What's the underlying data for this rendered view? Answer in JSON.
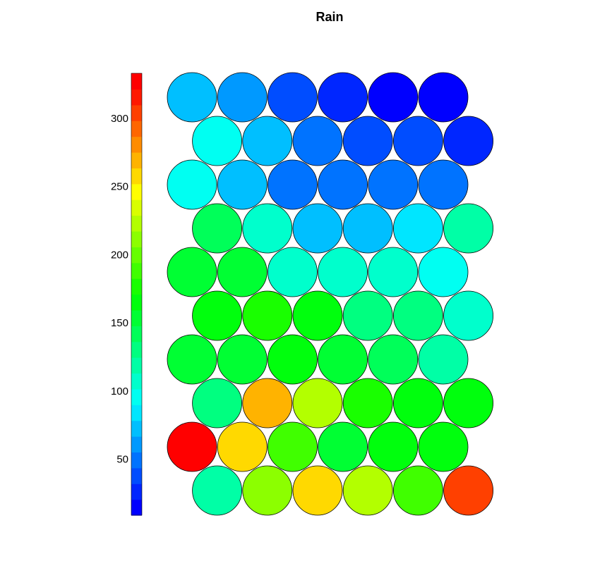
{
  "chart_data": {
    "type": "heatmap",
    "title": "Rain",
    "legend": {
      "placement": "left",
      "range": [
        9,
        333
      ],
      "ticks": [
        50,
        100,
        150,
        200,
        250,
        300
      ],
      "colors": [
        "#0000FF",
        "#0026FF",
        "#004DFF",
        "#0073FF",
        "#0099FF",
        "#00BFFF",
        "#00E6FF",
        "#00FFF2",
        "#00FFCC",
        "#00FFA6",
        "#00FF80",
        "#00FF59",
        "#00FF33",
        "#00FF0D",
        "#19FF00",
        "#40FF00",
        "#66FF00",
        "#8CFF00",
        "#B3FF00",
        "#D9FF00",
        "#FFFF00",
        "#FFD900",
        "#FFB300",
        "#FF8C00",
        "#FF6600",
        "#FF4000",
        "#FF1900",
        "#FF0000"
      ]
    },
    "grid": {
      "columns": 6,
      "rows": 10,
      "layout": "hexagonal"
    },
    "rows": [
      [
        123,
        216,
        252,
        223,
        189,
        305
      ],
      [
        326,
        255,
        183,
        158,
        168,
        168
      ],
      [
        135,
        265,
        219,
        176,
        164,
        163
      ],
      [
        152,
        153,
        170,
        148,
        137,
        120
      ],
      [
        162,
        171,
        160,
        129,
        128,
        112
      ],
      [
        156,
        153,
        111,
        109,
        109,
        97
      ],
      [
        140,
        105,
        70,
        72,
        80,
        120
      ],
      [
        100,
        67,
        47,
        47,
        46,
        50
      ],
      [
        95,
        77,
        52,
        38,
        38,
        31
      ],
      [
        78,
        62,
        40,
        30,
        12,
        10
      ]
    ]
  }
}
